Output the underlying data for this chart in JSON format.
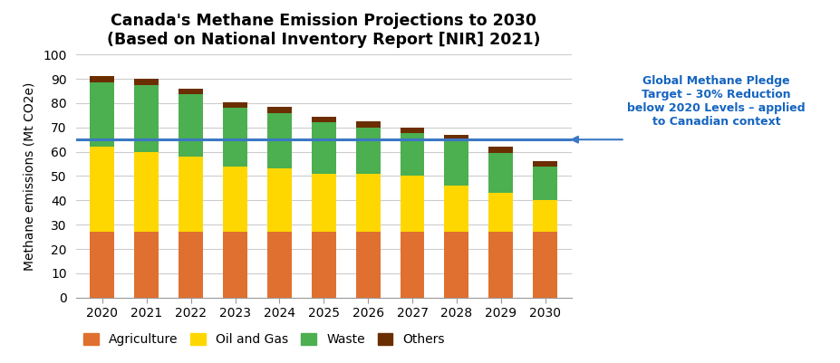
{
  "title": "Canada's Methane Emission Projections to 2030",
  "subtitle": "(Based on National Inventory Report [NIR] 2021)",
  "ylabel": "Methane emissions (Mt CO2e)",
  "years": [
    2020,
    2021,
    2022,
    2023,
    2024,
    2025,
    2026,
    2027,
    2028,
    2029,
    2030
  ],
  "agriculture": [
    27.0,
    27.0,
    27.0,
    27.0,
    27.0,
    27.0,
    27.0,
    27.0,
    27.0,
    27.0,
    27.0
  ],
  "oil_and_gas": [
    35.0,
    33.0,
    31.0,
    27.0,
    26.0,
    24.0,
    24.0,
    23.0,
    19.0,
    16.0,
    13.0
  ],
  "waste": [
    26.5,
    27.5,
    25.5,
    24.0,
    23.0,
    21.0,
    19.0,
    17.5,
    18.5,
    16.5,
    14.0
  ],
  "others": [
    2.5,
    2.5,
    2.5,
    2.5,
    2.5,
    2.5,
    2.5,
    2.5,
    2.5,
    2.5,
    2.0
  ],
  "color_agriculture": "#E07030",
  "color_oil_gas": "#FFD700",
  "color_waste": "#4CAF50",
  "color_others": "#6B2E00",
  "target_line_y": 65.0,
  "target_line_color": "#3B78C4",
  "annotation_text": "Global Methane Pledge\nTarget – 30% Reduction\nbelow 2020 Levels – applied\nto Canadian context",
  "annotation_color": "#1565C0",
  "ylim": [
    0,
    100
  ],
  "yticks": [
    0,
    10,
    20,
    30,
    40,
    50,
    60,
    70,
    80,
    90,
    100
  ],
  "background_color": "#ffffff",
  "grid_color": "#cccccc"
}
